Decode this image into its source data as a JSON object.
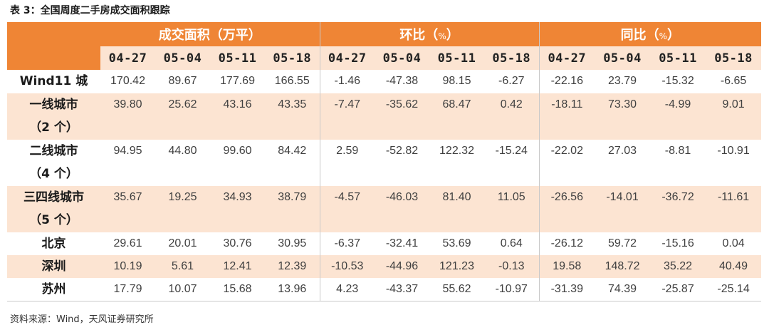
{
  "caption": "表 3：全国周度二手房成交面积跟踪",
  "source": "资料来源：Wind，天风证券研究所",
  "groups": [
    {
      "title": "成交面积（万平）",
      "unit": ""
    },
    {
      "title": "环比（",
      "unit": "%",
      "close": "）"
    },
    {
      "title": "同比（",
      "unit": "%",
      "close": "）"
    }
  ],
  "dates": [
    "04-27",
    "05-04",
    "05-11",
    "05-18",
    "04-27",
    "05-04",
    "05-11",
    "05-18",
    "04-27",
    "05-04",
    "05-11",
    "05-18"
  ],
  "rows": [
    {
      "label": "Wind11 城",
      "label2": "",
      "values": [
        "170.42",
        "89.67",
        "177.69",
        "166.55",
        "-1.46",
        "-47.38",
        "98.15",
        "-6.27",
        "-22.16",
        "23.79",
        "-15.32",
        "-6.65"
      ]
    },
    {
      "label": "一线城市",
      "label2": "（2 个）",
      "values": [
        "39.80",
        "25.62",
        "43.16",
        "43.35",
        "-7.47",
        "-35.62",
        "68.47",
        "0.42",
        "-18.11",
        "73.30",
        "-4.99",
        "9.01"
      ]
    },
    {
      "label": "二线城市",
      "label2": "（4 个）",
      "values": [
        "94.95",
        "44.80",
        "99.60",
        "84.42",
        "2.59",
        "-52.82",
        "122.32",
        "-15.24",
        "-22.02",
        "27.03",
        "-8.81",
        "-10.91"
      ]
    },
    {
      "label": "三四线城市",
      "label2": "（5 个）",
      "values": [
        "35.67",
        "19.25",
        "34.93",
        "38.79",
        "-4.57",
        "-46.03",
        "81.40",
        "11.05",
        "-26.56",
        "-14.01",
        "-36.72",
        "-11.61"
      ]
    },
    {
      "label": "北京",
      "label2": "",
      "values": [
        "29.61",
        "20.01",
        "30.76",
        "30.95",
        "-6.37",
        "-32.41",
        "53.69",
        "0.64",
        "-26.12",
        "59.72",
        "-15.16",
        "0.04"
      ]
    },
    {
      "label": "深圳",
      "label2": "",
      "values": [
        "10.19",
        "5.61",
        "12.41",
        "12.39",
        "-10.53",
        "-44.96",
        "121.23",
        "-0.13",
        "19.58",
        "148.72",
        "35.22",
        "40.49"
      ]
    },
    {
      "label": "苏州",
      "label2": "",
      "values": [
        "17.79",
        "10.07",
        "15.68",
        "13.96",
        "4.23",
        "-43.37",
        "55.62",
        "-10.97",
        "-31.39",
        "74.39",
        "-25.87",
        "-25.14"
      ]
    }
  ]
}
